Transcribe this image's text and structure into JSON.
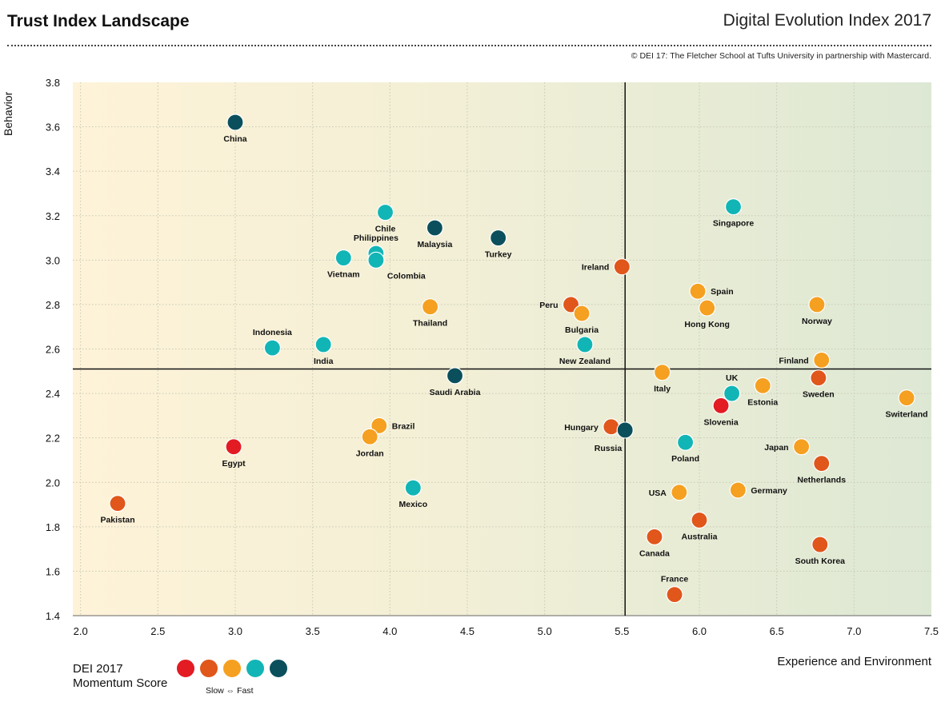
{
  "header": {
    "title": "Trust Index Landscape",
    "subtitle": "Digital Evolution Index 2017",
    "copyright": "© DEI 17:  The Fletcher School at Tufts University in partnership with Mastercard."
  },
  "legend": {
    "title_line1": "DEI 2017",
    "title_line2": "Momentum Score",
    "note": "Slow ⇔ Fast",
    "colors": [
      "#e31b23",
      "#e0561b",
      "#f5a020",
      "#12b5b5",
      "#0b4f5c"
    ]
  },
  "chart_data": {
    "type": "scatter",
    "title": "Trust Index Landscape",
    "xlabel": "Experience and Environment",
    "ylabel": "Behavior",
    "xlim": [
      1.95,
      7.5
    ],
    "ylim": [
      1.4,
      3.8
    ],
    "xticks": [
      "2.0",
      "2.5",
      "3.0",
      "3.5",
      "4.0",
      "4.5",
      "5.0",
      "5.5",
      "6.0",
      "6.5",
      "7.0",
      "7.5"
    ],
    "yticks": [
      "1.4",
      "1.6",
      "1.8",
      "2.0",
      "2.2",
      "2.4",
      "2.6",
      "2.8",
      "3.0",
      "3.2",
      "3.4",
      "3.6",
      "3.8"
    ],
    "grid": true,
    "divider_x": 5.52,
    "divider_y": 2.51,
    "momentum_colors": {
      "1": "#e31b23",
      "2": "#e0561b",
      "3": "#f5a020",
      "4": "#12b5b5",
      "5": "#0b4f5c"
    },
    "points": [
      {
        "label": "China",
        "x": 3.0,
        "y": 3.62,
        "m": 5,
        "pos": "below"
      },
      {
        "label": "Chile",
        "x": 3.97,
        "y": 3.215,
        "m": 4,
        "pos": "below"
      },
      {
        "label": "Philippines",
        "x": 3.91,
        "y": 3.03,
        "m": 4,
        "pos": "above"
      },
      {
        "label": "Colombia",
        "x": 3.91,
        "y": 3.0,
        "m": 4,
        "pos": "below-right"
      },
      {
        "label": "Vietnam",
        "x": 3.7,
        "y": 3.01,
        "m": 4,
        "pos": "below"
      },
      {
        "label": "Malaysia",
        "x": 4.29,
        "y": 3.145,
        "m": 5,
        "pos": "below"
      },
      {
        "label": "Turkey",
        "x": 4.7,
        "y": 3.1,
        "m": 5,
        "pos": "below"
      },
      {
        "label": "Thailand",
        "x": 4.26,
        "y": 2.79,
        "m": 3,
        "pos": "below"
      },
      {
        "label": "Indonesia",
        "x": 3.24,
        "y": 2.605,
        "m": 4,
        "pos": "above"
      },
      {
        "label": "India",
        "x": 3.57,
        "y": 2.62,
        "m": 4,
        "pos": "below"
      },
      {
        "label": "Saudi Arabia",
        "x": 4.42,
        "y": 2.48,
        "m": 5,
        "pos": "below"
      },
      {
        "label": "Brazil",
        "x": 3.93,
        "y": 2.255,
        "m": 3,
        "pos": "right"
      },
      {
        "label": "Jordan",
        "x": 3.87,
        "y": 2.205,
        "m": 3,
        "pos": "below"
      },
      {
        "label": "Egypt",
        "x": 2.99,
        "y": 2.16,
        "m": 1,
        "pos": "below"
      },
      {
        "label": "Mexico",
        "x": 4.15,
        "y": 1.975,
        "m": 4,
        "pos": "below"
      },
      {
        "label": "Pakistan",
        "x": 2.24,
        "y": 1.905,
        "m": 2,
        "pos": "below"
      },
      {
        "label": "Ireland",
        "x": 5.5,
        "y": 2.97,
        "m": 2,
        "pos": "left"
      },
      {
        "label": "Peru",
        "x": 5.17,
        "y": 2.8,
        "m": 2,
        "pos": "left"
      },
      {
        "label": "Bulgaria",
        "x": 5.24,
        "y": 2.76,
        "m": 3,
        "pos": "below"
      },
      {
        "label": "New Zealand",
        "x": 5.26,
        "y": 2.62,
        "m": 4,
        "pos": "below"
      },
      {
        "label": "Hungary",
        "x": 5.43,
        "y": 2.25,
        "m": 2,
        "pos": "left"
      },
      {
        "label": "Russia",
        "x": 5.52,
        "y": 2.235,
        "m": 5,
        "pos": "below-left"
      },
      {
        "label": "Singapore",
        "x": 6.22,
        "y": 3.24,
        "m": 4,
        "pos": "below"
      },
      {
        "label": "Spain",
        "x": 5.99,
        "y": 2.86,
        "m": 3,
        "pos": "right"
      },
      {
        "label": "Hong Kong",
        "x": 6.05,
        "y": 2.785,
        "m": 3,
        "pos": "below"
      },
      {
        "label": "Norway",
        "x": 6.76,
        "y": 2.8,
        "m": 3,
        "pos": "below"
      },
      {
        "label": "Finland",
        "x": 6.79,
        "y": 2.55,
        "m": 3,
        "pos": "left"
      },
      {
        "label": "Italy",
        "x": 5.76,
        "y": 2.495,
        "m": 3,
        "pos": "below"
      },
      {
        "label": "UK",
        "x": 6.21,
        "y": 2.4,
        "m": 4,
        "pos": "above"
      },
      {
        "label": "Estonia",
        "x": 6.41,
        "y": 2.435,
        "m": 3,
        "pos": "below"
      },
      {
        "label": "Sweden",
        "x": 6.77,
        "y": 2.47,
        "m": 2,
        "pos": "below"
      },
      {
        "label": "Slovenia",
        "x": 6.14,
        "y": 2.345,
        "m": 1,
        "pos": "below"
      },
      {
        "label": "Switerland",
        "x": 7.34,
        "y": 2.38,
        "m": 3,
        "pos": "below"
      },
      {
        "label": "Poland",
        "x": 5.91,
        "y": 2.18,
        "m": 4,
        "pos": "below"
      },
      {
        "label": "Japan",
        "x": 6.66,
        "y": 2.16,
        "m": 3,
        "pos": "left"
      },
      {
        "label": "Netherlands",
        "x": 6.79,
        "y": 2.085,
        "m": 2,
        "pos": "below"
      },
      {
        "label": "USA",
        "x": 5.87,
        "y": 1.955,
        "m": 3,
        "pos": "left"
      },
      {
        "label": "Germany",
        "x": 6.25,
        "y": 1.965,
        "m": 3,
        "pos": "right"
      },
      {
        "label": "Australia",
        "x": 6.0,
        "y": 1.83,
        "m": 2,
        "pos": "below"
      },
      {
        "label": "Canada",
        "x": 5.71,
        "y": 1.755,
        "m": 2,
        "pos": "below"
      },
      {
        "label": "South Korea",
        "x": 6.78,
        "y": 1.72,
        "m": 2,
        "pos": "below"
      },
      {
        "label": "France",
        "x": 5.84,
        "y": 1.495,
        "m": 2,
        "pos": "above"
      }
    ]
  }
}
